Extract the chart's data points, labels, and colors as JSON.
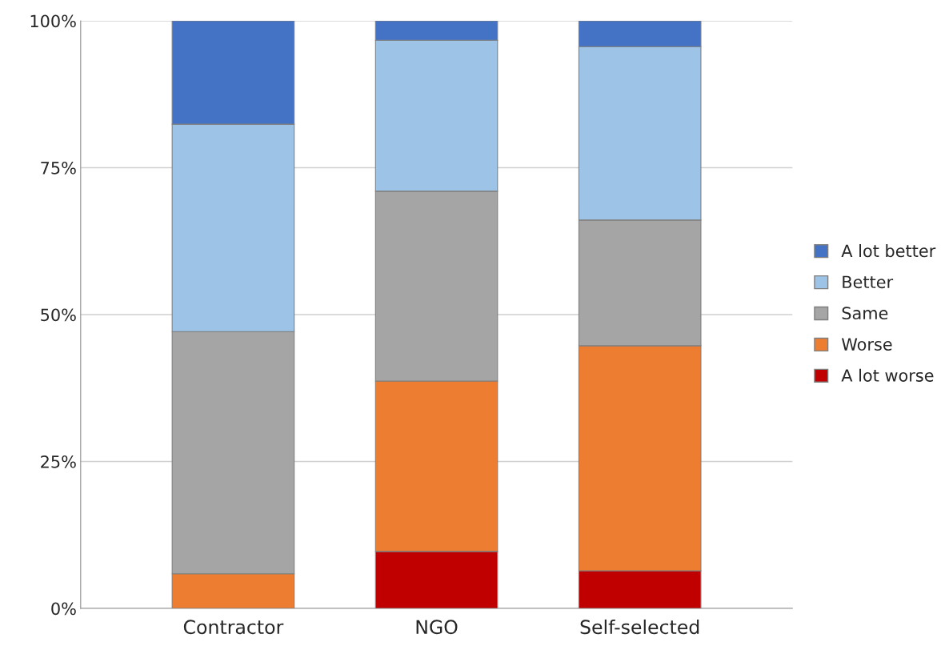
{
  "chart_data": {
    "type": "bar",
    "stacked": true,
    "categories": [
      "Contractor",
      "NGO",
      "Self-selected"
    ],
    "series": [
      {
        "name": "A lot worse",
        "color": "#c00000",
        "values": [
          0,
          9.7,
          6.4
        ]
      },
      {
        "name": "Worse",
        "color": "#ed7d31",
        "values": [
          5.9,
          29.0,
          38.3
        ]
      },
      {
        "name": "Same",
        "color": "#a5a5a5",
        "values": [
          41.2,
          32.3,
          21.4
        ]
      },
      {
        "name": "Better",
        "color": "#9dc3e6",
        "values": [
          35.3,
          25.7,
          29.5
        ]
      },
      {
        "name": "A lot better",
        "color": "#4472c4",
        "values": [
          17.6,
          3.3,
          4.4
        ]
      }
    ],
    "ylim": [
      0,
      100
    ],
    "yticks": [
      {
        "value": 0,
        "label": "0%"
      },
      {
        "value": 25,
        "label": "25%"
      },
      {
        "value": 50,
        "label": "50%"
      },
      {
        "value": 75,
        "label": "75%"
      },
      {
        "value": 100,
        "label": "100%"
      }
    ],
    "grid": "y",
    "legend": "right"
  }
}
